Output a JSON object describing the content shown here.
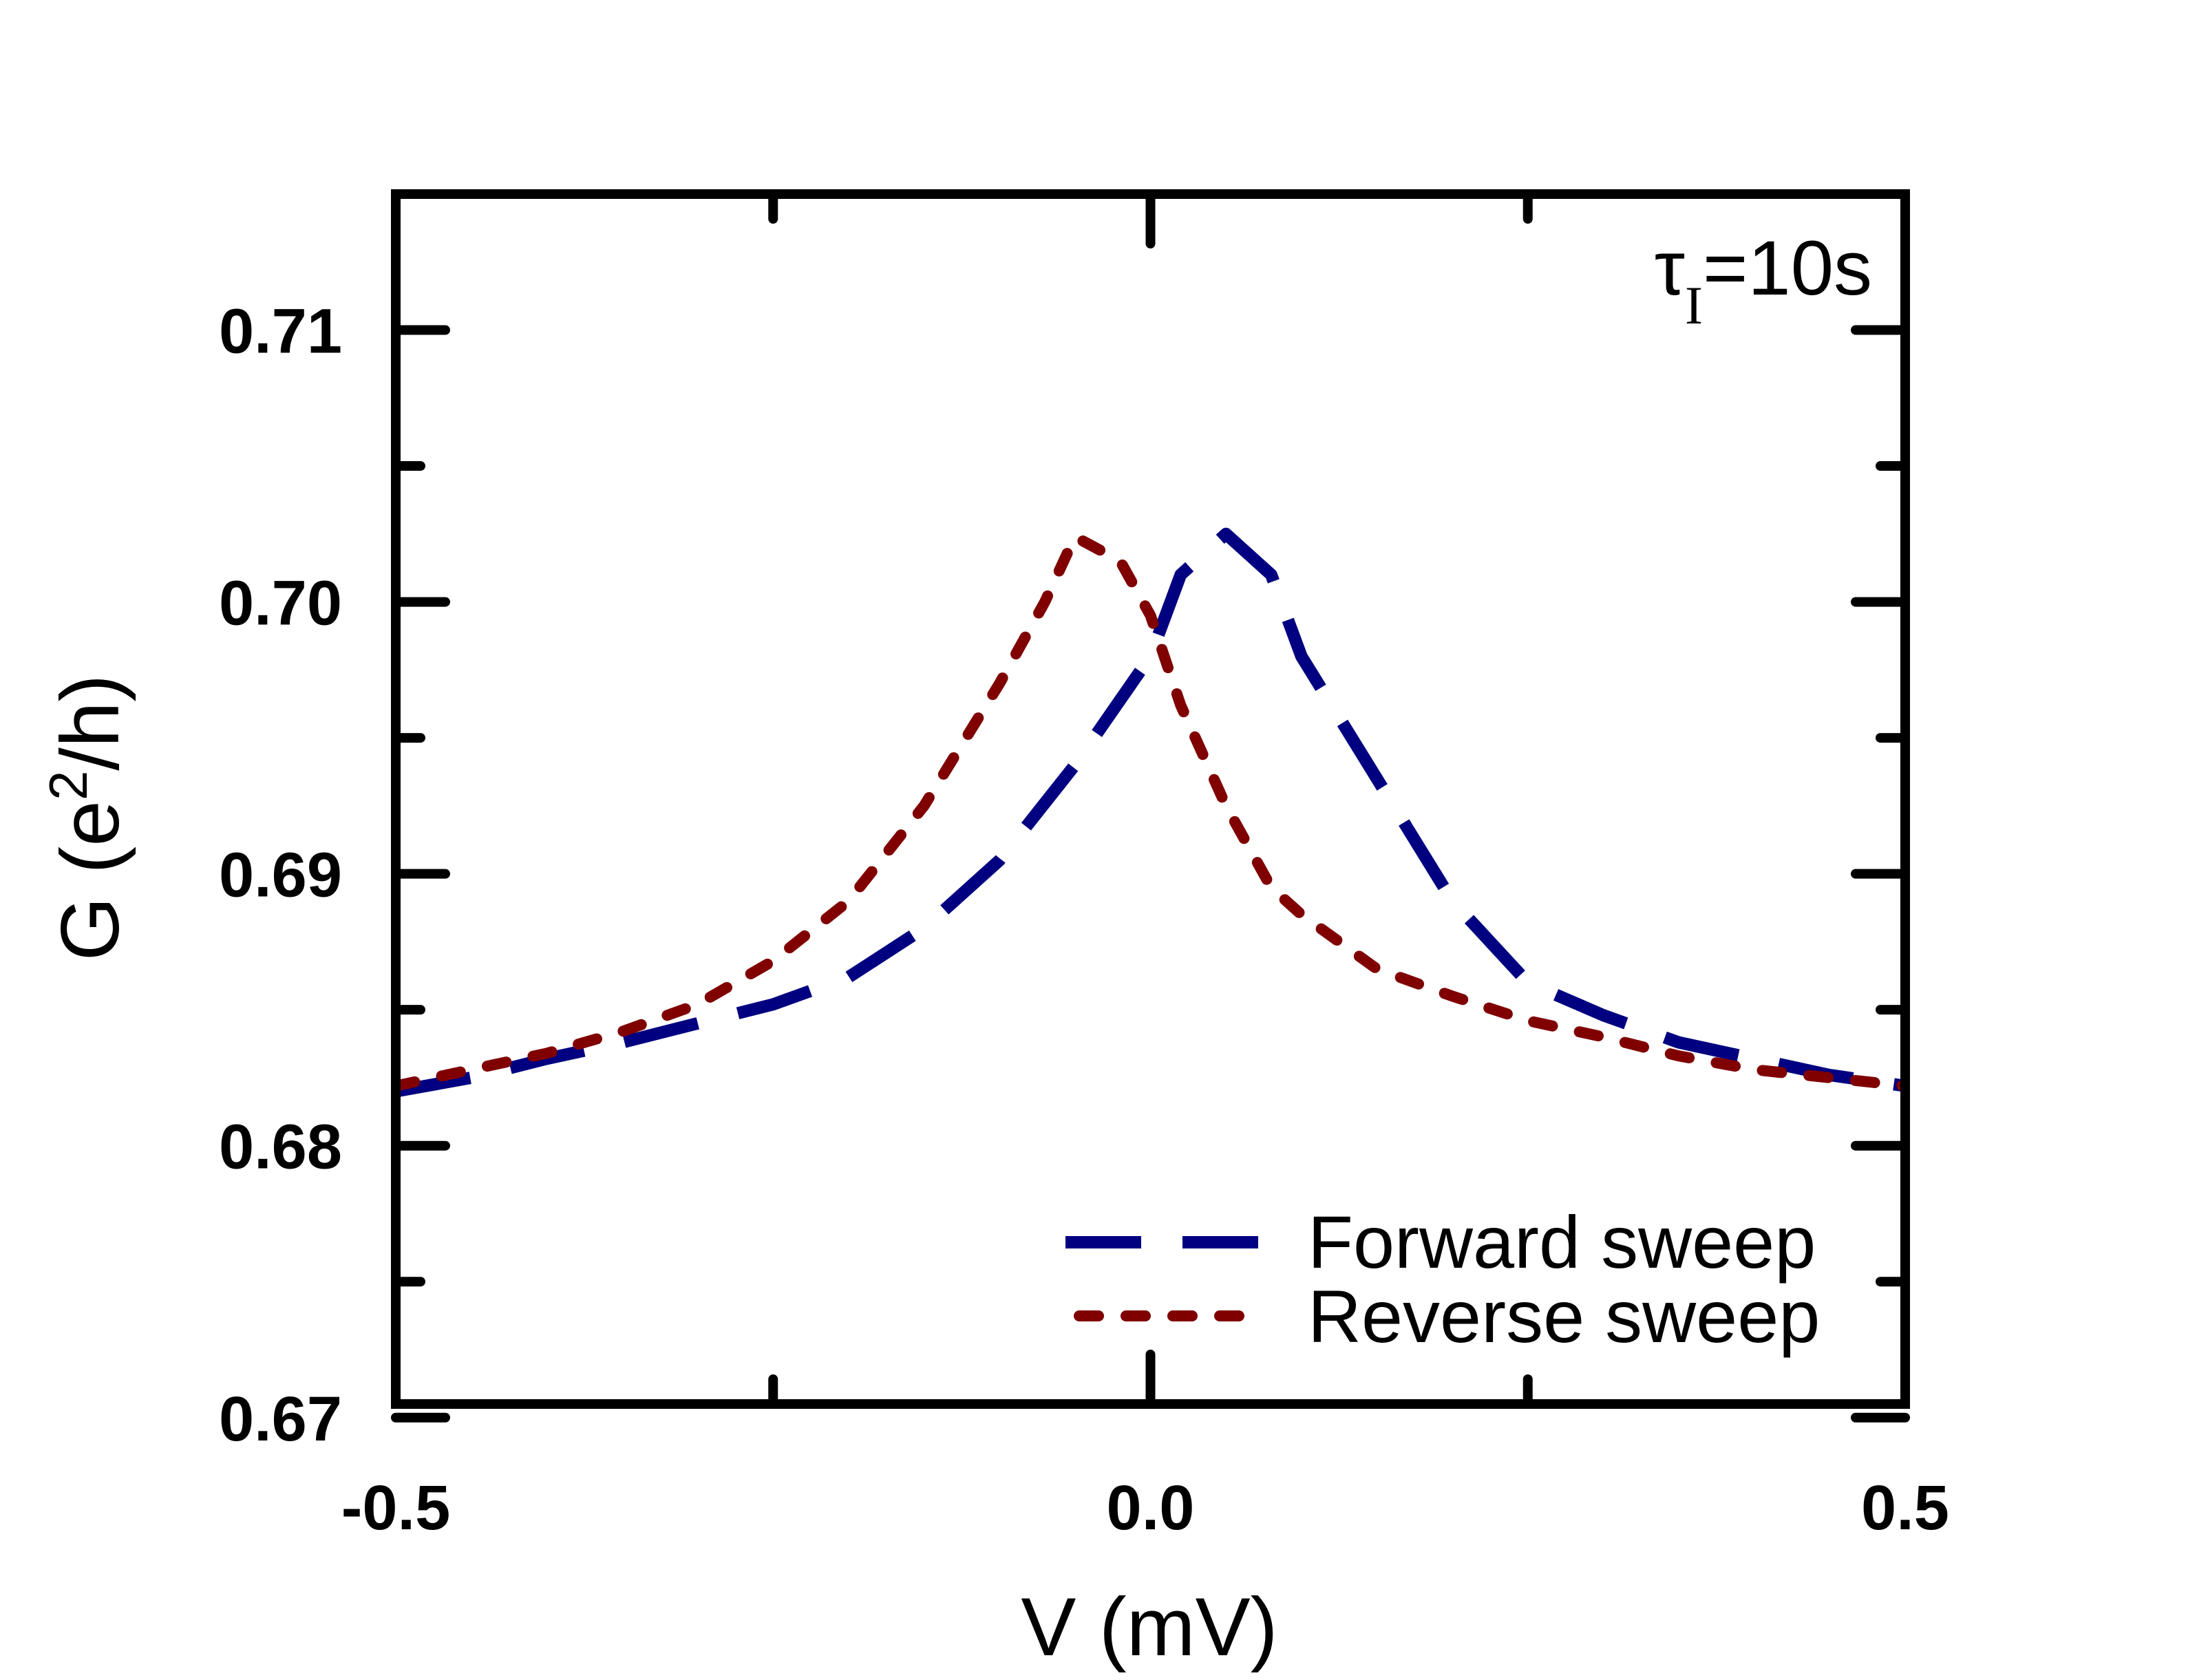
{
  "chart_data": {
    "type": "line",
    "title": "",
    "xlabel": "V (mV)",
    "ylabel_parts": {
      "base": "G (e",
      "sup": "2",
      "tail": "/h)"
    },
    "xlim": [
      -0.5,
      0.5
    ],
    "ylim": [
      0.6705,
      0.715
    ],
    "x_ticks": [
      -0.5,
      0.0,
      0.5
    ],
    "x_tick_labels": [
      "-0.5",
      "0.0",
      "0.5"
    ],
    "x_minor_ticks": [
      -0.25,
      0.25
    ],
    "y_ticks": [
      0.67,
      0.68,
      0.69,
      0.7,
      0.71
    ],
    "y_tick_labels": [
      "0.67",
      "0.68",
      "0.69",
      "0.70",
      "0.71"
    ],
    "y_minor_ticks": [
      0.675,
      0.685,
      0.695,
      0.705
    ],
    "annotation": {
      "symbol": "τ",
      "subscript": "I",
      "value": "=10s"
    },
    "legend_position": "bottom-right",
    "series": [
      {
        "name": "Forward sweep",
        "color": "#000080",
        "style": "dashed",
        "x": [
          -0.5,
          -0.45,
          -0.4,
          -0.35,
          -0.3,
          -0.25,
          -0.2,
          -0.15,
          -0.1,
          -0.05,
          0.0,
          0.02,
          0.05,
          0.08,
          0.1,
          0.15,
          0.2,
          0.25,
          0.3,
          0.35,
          0.4,
          0.45,
          0.5
        ],
        "values": [
          0.682,
          0.6825,
          0.6832,
          0.6838,
          0.6845,
          0.6852,
          0.6862,
          0.688,
          0.6905,
          0.694,
          0.698,
          0.701,
          0.7025,
          0.701,
          0.698,
          0.6935,
          0.689,
          0.686,
          0.6848,
          0.6838,
          0.6832,
          0.6826,
          0.6822
        ]
      },
      {
        "name": "Reverse sweep",
        "color": "#800000",
        "style": "dotted",
        "x": [
          -0.5,
          -0.45,
          -0.4,
          -0.35,
          -0.3,
          -0.25,
          -0.2,
          -0.15,
          -0.1,
          -0.07,
          -0.05,
          -0.02,
          0.0,
          0.02,
          0.05,
          0.08,
          0.1,
          0.15,
          0.2,
          0.25,
          0.3,
          0.35,
          0.4,
          0.45,
          0.5
        ],
        "values": [
          0.6822,
          0.6828,
          0.6834,
          0.6842,
          0.6852,
          0.6868,
          0.689,
          0.6925,
          0.697,
          0.7,
          0.7024,
          0.7015,
          0.6995,
          0.6962,
          0.6925,
          0.6895,
          0.6885,
          0.6865,
          0.6855,
          0.6846,
          0.684,
          0.6833,
          0.6828,
          0.6825,
          0.6822
        ]
      }
    ]
  }
}
